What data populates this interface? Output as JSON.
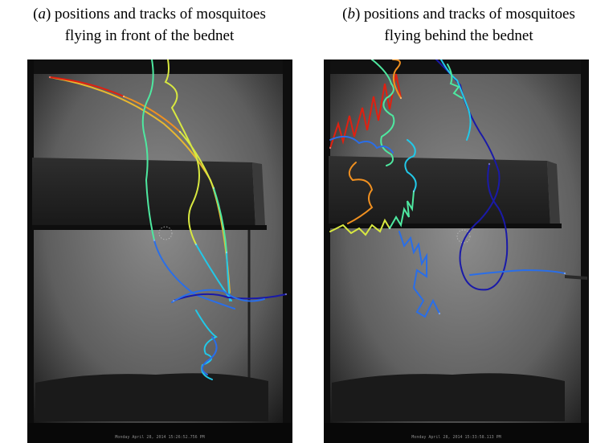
{
  "captions": [
    {
      "label": "a",
      "open": "(",
      "close": ")",
      "line1": " positions and tracks of mosquitoes",
      "line2": "flying in front of the bednet"
    },
    {
      "label": "b",
      "open": "(",
      "close": ")",
      "line1": " positions and tracks of mosquitoes",
      "line2": "flying behind the bednet"
    }
  ],
  "panels": [
    {
      "id": "a",
      "scene": "grayscale-video-frame-bednet",
      "timestamp": "Monday April 28, 2014 15:26:52.756 PM"
    },
    {
      "id": "b",
      "scene": "grayscale-video-frame-bednet",
      "timestamp": "Monday April 28, 2014 15:33:58.113 PM"
    }
  ],
  "track_colormap": [
    "#1a1aa8",
    "#2a6ee8",
    "#22c8e8",
    "#4ee8a0",
    "#d8e840",
    "#f09020",
    "#e02010"
  ]
}
